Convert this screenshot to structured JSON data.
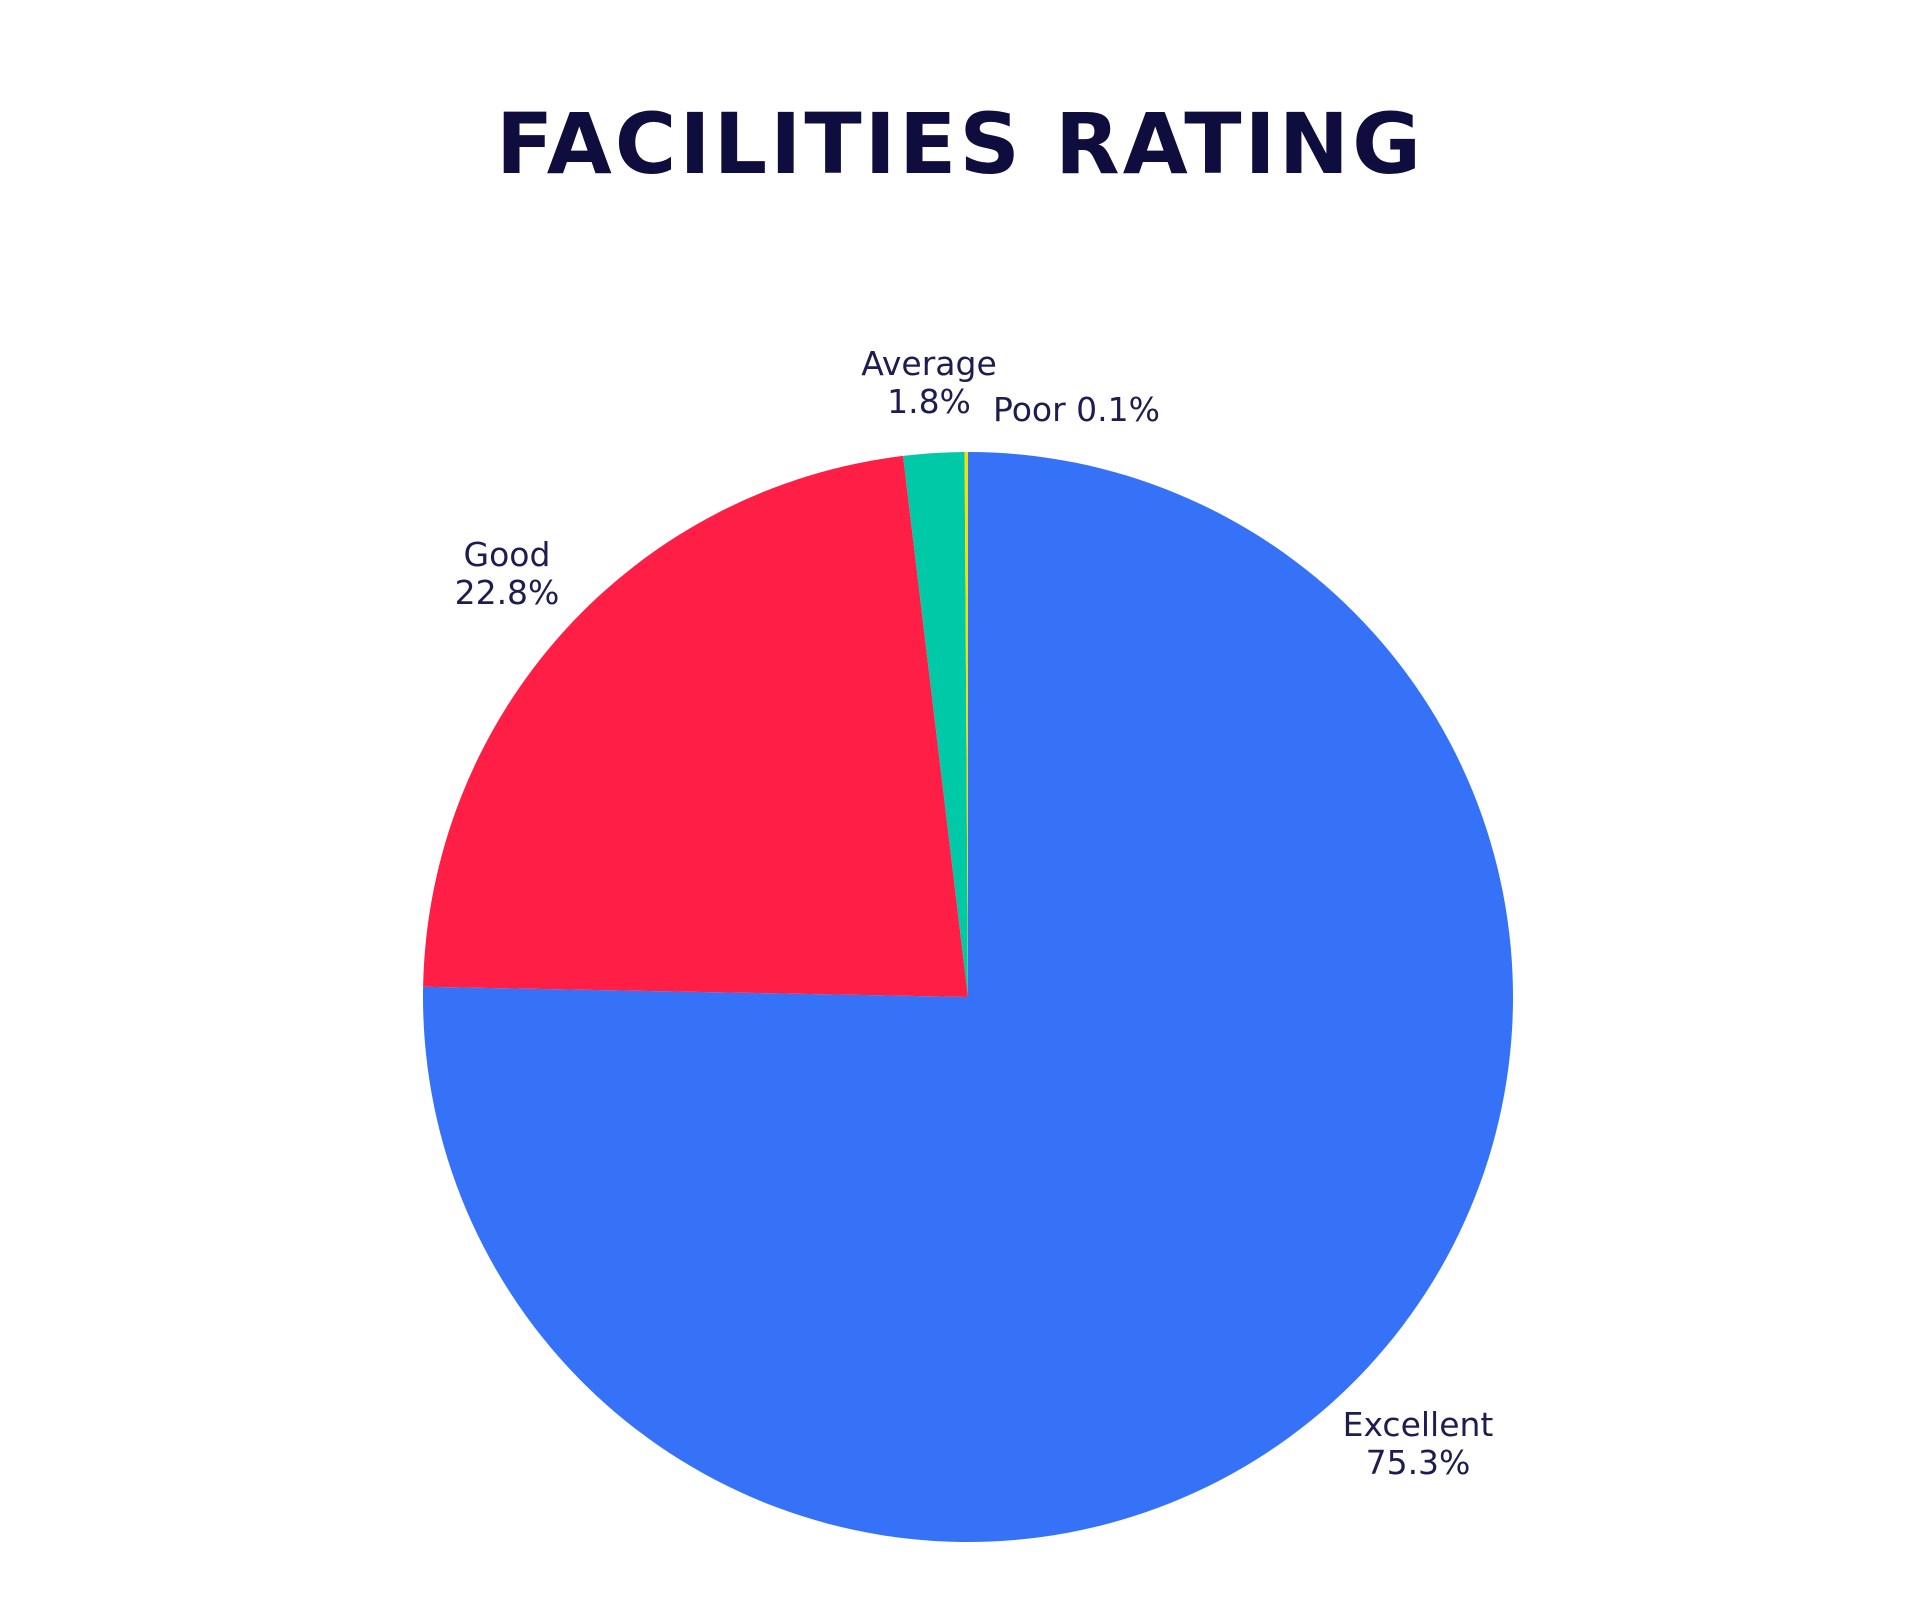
{
  "chart_data": {
    "type": "pie",
    "title": "FACILITIES RATING",
    "slices": [
      {
        "label": "Excellent",
        "value": 75.3,
        "value_label": "75.3%",
        "color": "#3572f7"
      },
      {
        "label": "Good",
        "value": 22.8,
        "value_label": "22.8%",
        "color": "#ff1e45"
      },
      {
        "label": "Average",
        "value": 1.8,
        "value_label": "1.8%",
        "color": "#00c9a7"
      },
      {
        "label": "Poor",
        "value": 0.1,
        "value_label": "0.1%",
        "color": "#f2e200"
      }
    ],
    "start_angle": "12 o'clock",
    "direction": "clockwise",
    "legend": "none",
    "text_color": "#1f1d4f",
    "title_color": "#0f0d3e"
  }
}
